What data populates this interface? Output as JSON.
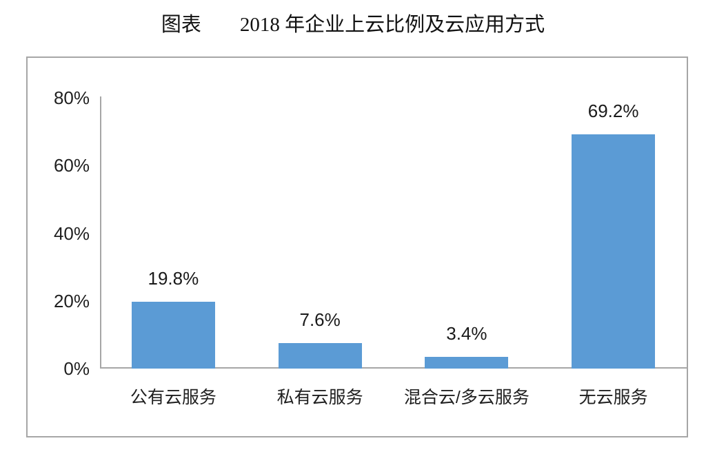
{
  "title": {
    "prefix": "图表",
    "main": "2018 年企业上云比例及云应用方式"
  },
  "chart_data": {
    "type": "bar",
    "title": "2018 年企业上云比例及云应用方式",
    "categories": [
      "公有云服务",
      "私有云服务",
      "混合云/多云服务",
      "无云服务"
    ],
    "values": [
      19.8,
      7.6,
      3.4,
      69.2
    ],
    "data_labels": [
      "19.8%",
      "7.6%",
      "3.4%",
      "69.2%"
    ],
    "xlabel": "",
    "ylabel": "",
    "ylim": [
      0,
      80
    ],
    "yticks": [
      0,
      20,
      40,
      60,
      80
    ],
    "ytick_labels": [
      "0%",
      "20%",
      "40%",
      "60%",
      "80%"
    ],
    "grid": false,
    "legend_position": "none",
    "bar_color": "#5b9bd5",
    "axis_color": "#a6a6a6",
    "border_color": "#a6a6a6",
    "label_color": "#1a1a1a"
  }
}
